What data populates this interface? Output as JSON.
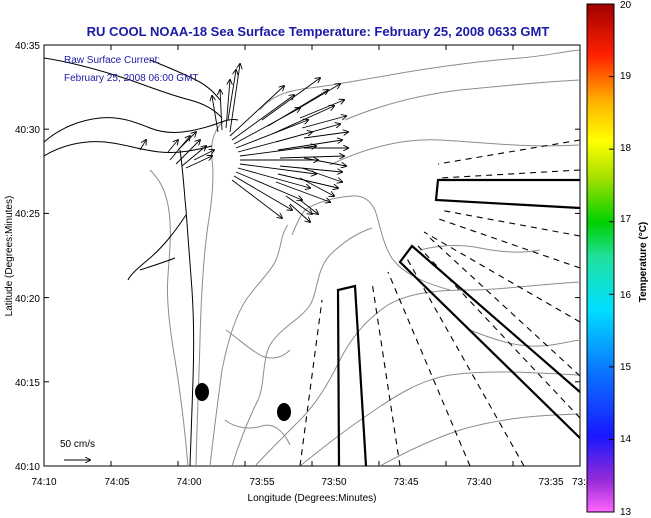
{
  "title": "RU COOL  NOAA-18  Sea Surface Temperature:  February 25, 2008 0633 GMT",
  "inset": {
    "line1": "Raw Surface Current:",
    "line2": "February 25, 2008 06:00 GMT"
  },
  "scale_label": "50 cm/s",
  "colors": {
    "title": "#1a1aa6",
    "contour": "#8c8c8c",
    "coast": "#000000",
    "vectors": "#000000"
  },
  "chart_data": {
    "type": "map",
    "xlabel": "Longitude (Degrees:Minutes)",
    "ylabel": "Latitude (Degrees:Minutes)",
    "x_ticks": [
      "74:10",
      "74:05",
      "74:00",
      "73:55",
      "73:50",
      "73:45",
      "73:40",
      "73:35",
      "73:3"
    ],
    "y_ticks": [
      "40:35",
      "40:30",
      "40:25",
      "40:20",
      "40:15",
      "40:10"
    ],
    "xlim_minutes_west": [
      10,
      -27
    ],
    "colorbar": {
      "label": "Temperature (°C)",
      "min": 13,
      "max": 20,
      "ticks": [
        "20",
        "19",
        "18",
        "17",
        "16",
        "15",
        "14",
        "13"
      ]
    }
  }
}
